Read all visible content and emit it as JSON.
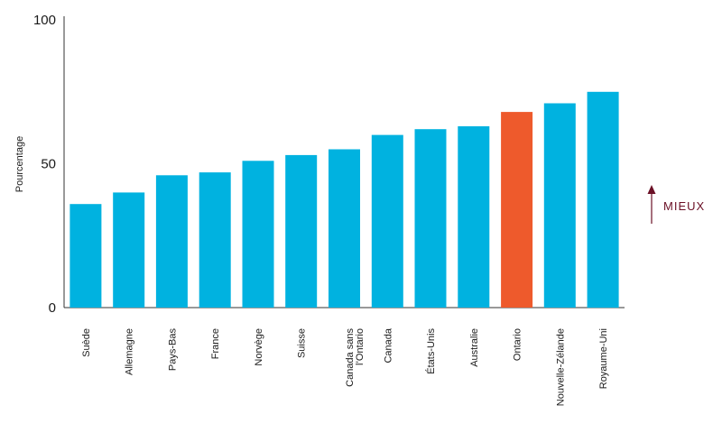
{
  "chart_data": {
    "type": "bar",
    "title": "",
    "xlabel": "",
    "ylabel": "Pourcentage",
    "ylim": [
      0,
      100
    ],
    "yticks": [
      0,
      50,
      100
    ],
    "grid": false,
    "categories": [
      "Suède",
      "Allemagne",
      "Pays-Bas",
      "France",
      "Norvège",
      "Suisse",
      "Canada sans l’Ontario",
      "Canada",
      "États-Unis",
      "Australie",
      "Ontario",
      "Nouvelle-Zélande",
      "Royaume-Uni"
    ],
    "category_lines": [
      [
        "Suède"
      ],
      [
        "Allemagne"
      ],
      [
        "Pays-Bas"
      ],
      [
        "France"
      ],
      [
        "Norvège"
      ],
      [
        "Suisse"
      ],
      [
        "Canada sans",
        "l’Ontario"
      ],
      [
        "Canada"
      ],
      [
        "États-Unis"
      ],
      [
        "Australie"
      ],
      [
        "Ontario"
      ],
      [
        "Nouvelle-Zélande"
      ],
      [
        "Royaume-Uni"
      ]
    ],
    "values": [
      36,
      40,
      46,
      47,
      51,
      53,
      55,
      60,
      62,
      63,
      68,
      71,
      75
    ],
    "highlight": "Ontario",
    "colors": {
      "bar": "#00b2e0",
      "highlight": "#ee5a2c",
      "axis": "#333333",
      "arrow": "#6b1026"
    },
    "annotation": {
      "text": "MIEUX",
      "arrow": "up"
    }
  }
}
